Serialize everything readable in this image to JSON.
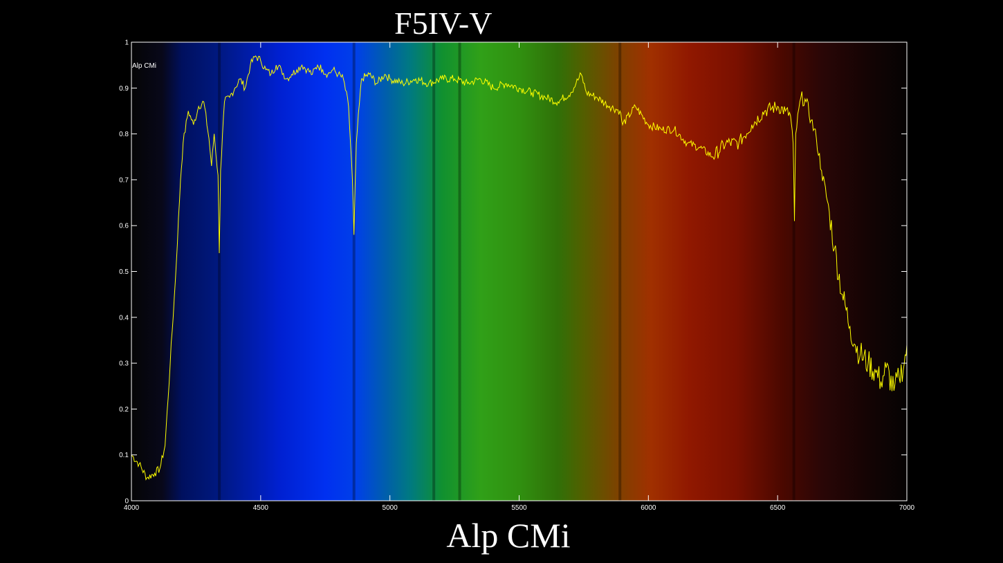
{
  "page": {
    "title": "F5IV-V",
    "subtitle": "Alp CMi"
  },
  "colors": {
    "background": "#000000",
    "axes": "#ffffff",
    "series": "#ffff00",
    "text": "#ffffff"
  },
  "chart_data": {
    "type": "line",
    "title": "F5IV-V",
    "xlabel": "Alp CMi",
    "ylabel": "",
    "xlim": [
      4000,
      7000
    ],
    "ylim": [
      0,
      1
    ],
    "xticks": [
      4000,
      4500,
      5000,
      5500,
      6000,
      6500,
      7000
    ],
    "yticks": [
      0,
      0.1,
      0.2,
      0.3,
      0.4,
      0.5,
      0.6,
      0.7,
      0.8,
      0.9,
      1
    ],
    "grid": false,
    "legend": "Alp CMi",
    "legend_position": "top-left",
    "background": "visible spectrum gradient",
    "series": [
      {
        "name": "Alp CMi",
        "x": [
          4000,
          4030,
          4060,
          4090,
          4110,
          4130,
          4150,
          4170,
          4190,
          4200,
          4220,
          4240,
          4260,
          4280,
          4300,
          4310,
          4320,
          4335,
          4340,
          4345,
          4360,
          4380,
          4400,
          4420,
          4440,
          4460,
          4480,
          4500,
          4520,
          4540,
          4560,
          4580,
          4600,
          4620,
          4640,
          4660,
          4680,
          4700,
          4720,
          4740,
          4760,
          4780,
          4800,
          4820,
          4840,
          4855,
          4861,
          4870,
          4890,
          4920,
          4950,
          4980,
          5000,
          5050,
          5100,
          5150,
          5200,
          5250,
          5300,
          5350,
          5400,
          5450,
          5500,
          5550,
          5600,
          5650,
          5700,
          5720,
          5740,
          5760,
          5800,
          5850,
          5890,
          5900,
          5950,
          6000,
          6050,
          6100,
          6150,
          6200,
          6250,
          6300,
          6350,
          6400,
          6450,
          6500,
          6530,
          6550,
          6560,
          6565,
          6570,
          6590,
          6610,
          6630,
          6650,
          6670,
          6700,
          6720,
          6750,
          6780,
          6800,
          6820,
          6850,
          6880,
          6900,
          6920,
          6950,
          6970,
          6990,
          7000
        ],
        "y": [
          0.1,
          0.08,
          0.05,
          0.06,
          0.07,
          0.12,
          0.3,
          0.48,
          0.7,
          0.78,
          0.85,
          0.82,
          0.86,
          0.87,
          0.79,
          0.73,
          0.8,
          0.71,
          0.54,
          0.72,
          0.87,
          0.88,
          0.9,
          0.92,
          0.9,
          0.95,
          0.97,
          0.96,
          0.94,
          0.93,
          0.95,
          0.94,
          0.92,
          0.93,
          0.94,
          0.95,
          0.94,
          0.93,
          0.95,
          0.94,
          0.93,
          0.94,
          0.93,
          0.92,
          0.86,
          0.7,
          0.58,
          0.78,
          0.92,
          0.93,
          0.91,
          0.93,
          0.92,
          0.91,
          0.92,
          0.91,
          0.92,
          0.92,
          0.91,
          0.92,
          0.9,
          0.91,
          0.9,
          0.89,
          0.88,
          0.87,
          0.89,
          0.91,
          0.93,
          0.89,
          0.88,
          0.86,
          0.85,
          0.82,
          0.86,
          0.82,
          0.81,
          0.81,
          0.78,
          0.77,
          0.75,
          0.78,
          0.78,
          0.82,
          0.85,
          0.86,
          0.85,
          0.84,
          0.78,
          0.61,
          0.8,
          0.88,
          0.87,
          0.83,
          0.79,
          0.72,
          0.63,
          0.55,
          0.45,
          0.38,
          0.34,
          0.32,
          0.3,
          0.28,
          0.26,
          0.29,
          0.24,
          0.27,
          0.3,
          0.34
        ]
      }
    ]
  }
}
